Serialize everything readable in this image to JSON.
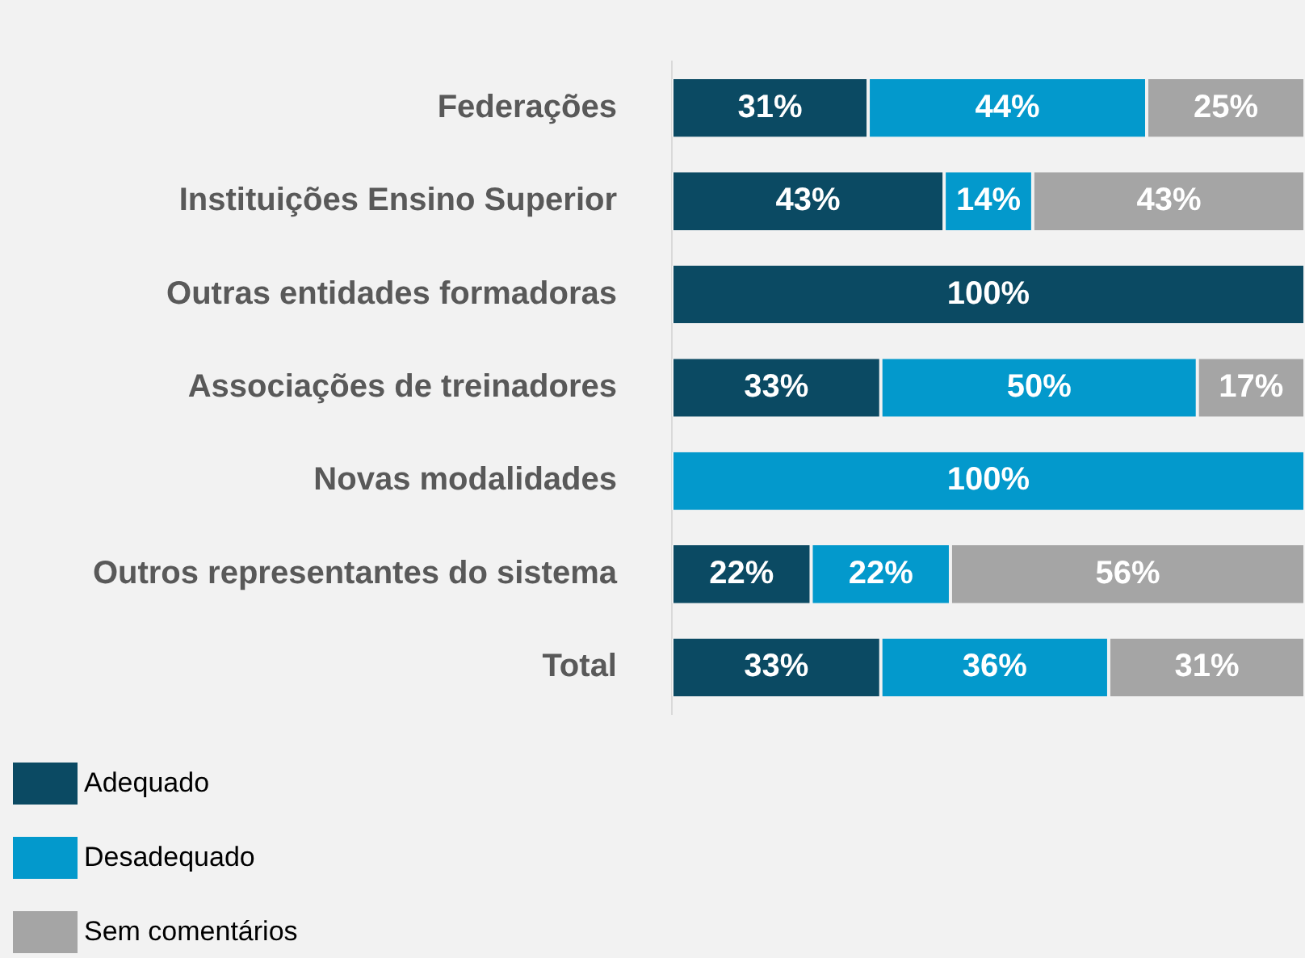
{
  "chart_data": {
    "type": "bar",
    "orientation": "horizontal",
    "stacked": true,
    "categories": [
      "Federações",
      "Instituições Ensino Superior",
      "Outras entidades formadoras",
      "Associações de treinadores",
      "Novas modalidades",
      "Outros representantes do sistema",
      "Total"
    ],
    "xlim": [
      0,
      100
    ],
    "legend": "bottom left",
    "series": [
      {
        "name": "Adequado",
        "color": "#0b4a63",
        "values": [
          31,
          43,
          100,
          33,
          null,
          22,
          33
        ],
        "value_labels": [
          "31%",
          "43%",
          "100%",
          "33%",
          null,
          "22%",
          "33%"
        ]
      },
      {
        "name": "Desadequado",
        "color": "#0399cc",
        "values": [
          44,
          14,
          null,
          50,
          100,
          22,
          36
        ],
        "value_labels": [
          "44%",
          "14%",
          null,
          "50%",
          "100%",
          "22%",
          "36%"
        ]
      },
      {
        "name": "Sem comentários",
        "color": "#a5a5a5",
        "values": [
          25,
          43,
          null,
          17,
          null,
          56,
          31
        ],
        "value_labels": [
          "25%",
          "43%",
          null,
          "17%",
          null,
          "56%",
          "31%"
        ]
      }
    ]
  }
}
